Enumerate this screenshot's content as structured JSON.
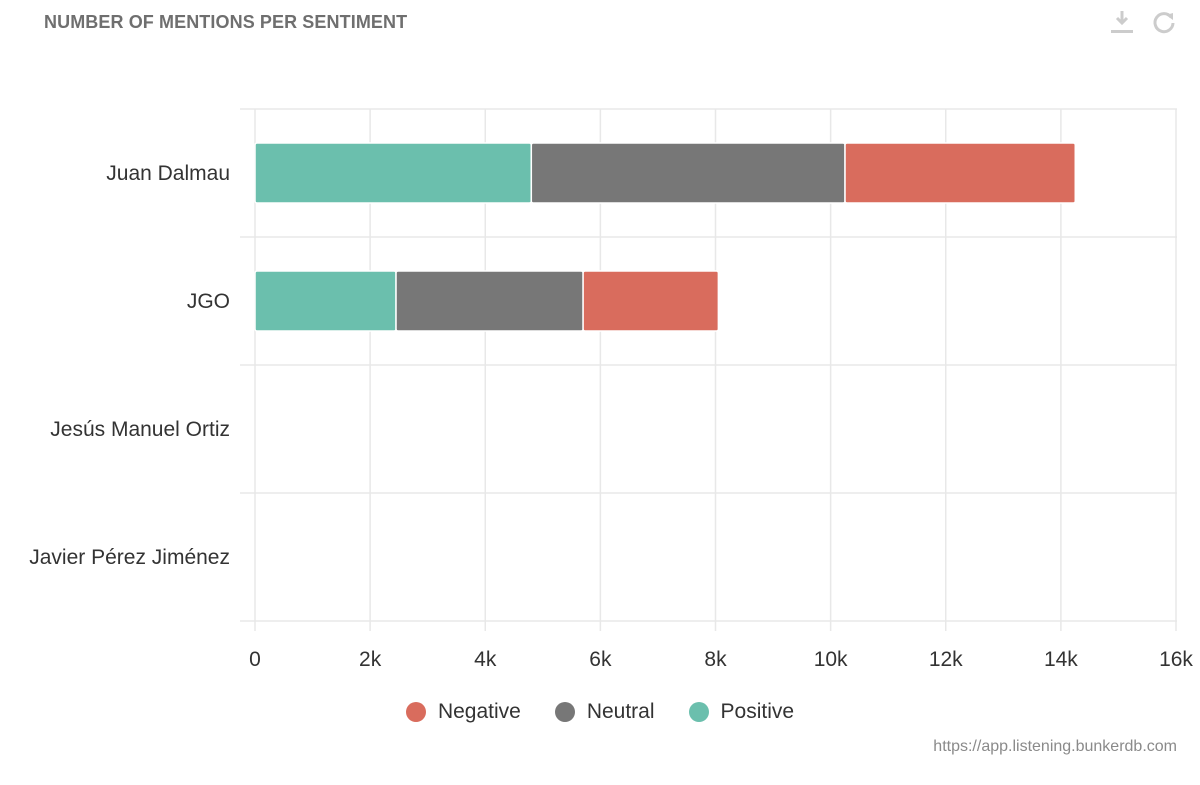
{
  "header": {
    "title": "NUMBER OF MENTIONS PER SENTIMENT",
    "download_icon": "download-icon",
    "refresh_icon": "refresh-icon"
  },
  "colors": {
    "negative": "#d96c5d",
    "neutral": "#777777",
    "positive": "#6bbfad",
    "grid": "#e8e8e8",
    "toolbar_icon": "#cccccc"
  },
  "chart_data": {
    "type": "bar",
    "orientation": "horizontal",
    "stacked": true,
    "title": "NUMBER OF MENTIONS PER SENTIMENT",
    "categories": [
      "Juan Dalmau",
      "JGO",
      "Jesús Manuel Ortiz",
      "Javier Pérez Jiménez"
    ],
    "series": [
      {
        "name": "Positive",
        "values": [
          4800,
          2450,
          0,
          0
        ]
      },
      {
        "name": "Neutral",
        "values": [
          5450,
          3250,
          0,
          0
        ]
      },
      {
        "name": "Negative",
        "values": [
          4000,
          2350,
          0,
          0
        ]
      }
    ],
    "xlim": [
      0,
      16000
    ],
    "x_ticks": [
      0,
      2000,
      4000,
      6000,
      8000,
      10000,
      12000,
      14000,
      16000
    ],
    "x_tick_labels": [
      "0",
      "2k",
      "4k",
      "6k",
      "8k",
      "10k",
      "12k",
      "14k",
      "16k"
    ],
    "grid": true,
    "legend_position": "bottom"
  },
  "legend": [
    {
      "label": "Negative",
      "color": "#d96c5d"
    },
    {
      "label": "Neutral",
      "color": "#777777"
    },
    {
      "label": "Positive",
      "color": "#6bbfad"
    }
  ],
  "footer": {
    "source": "https://app.listening.bunkerdb.com"
  }
}
